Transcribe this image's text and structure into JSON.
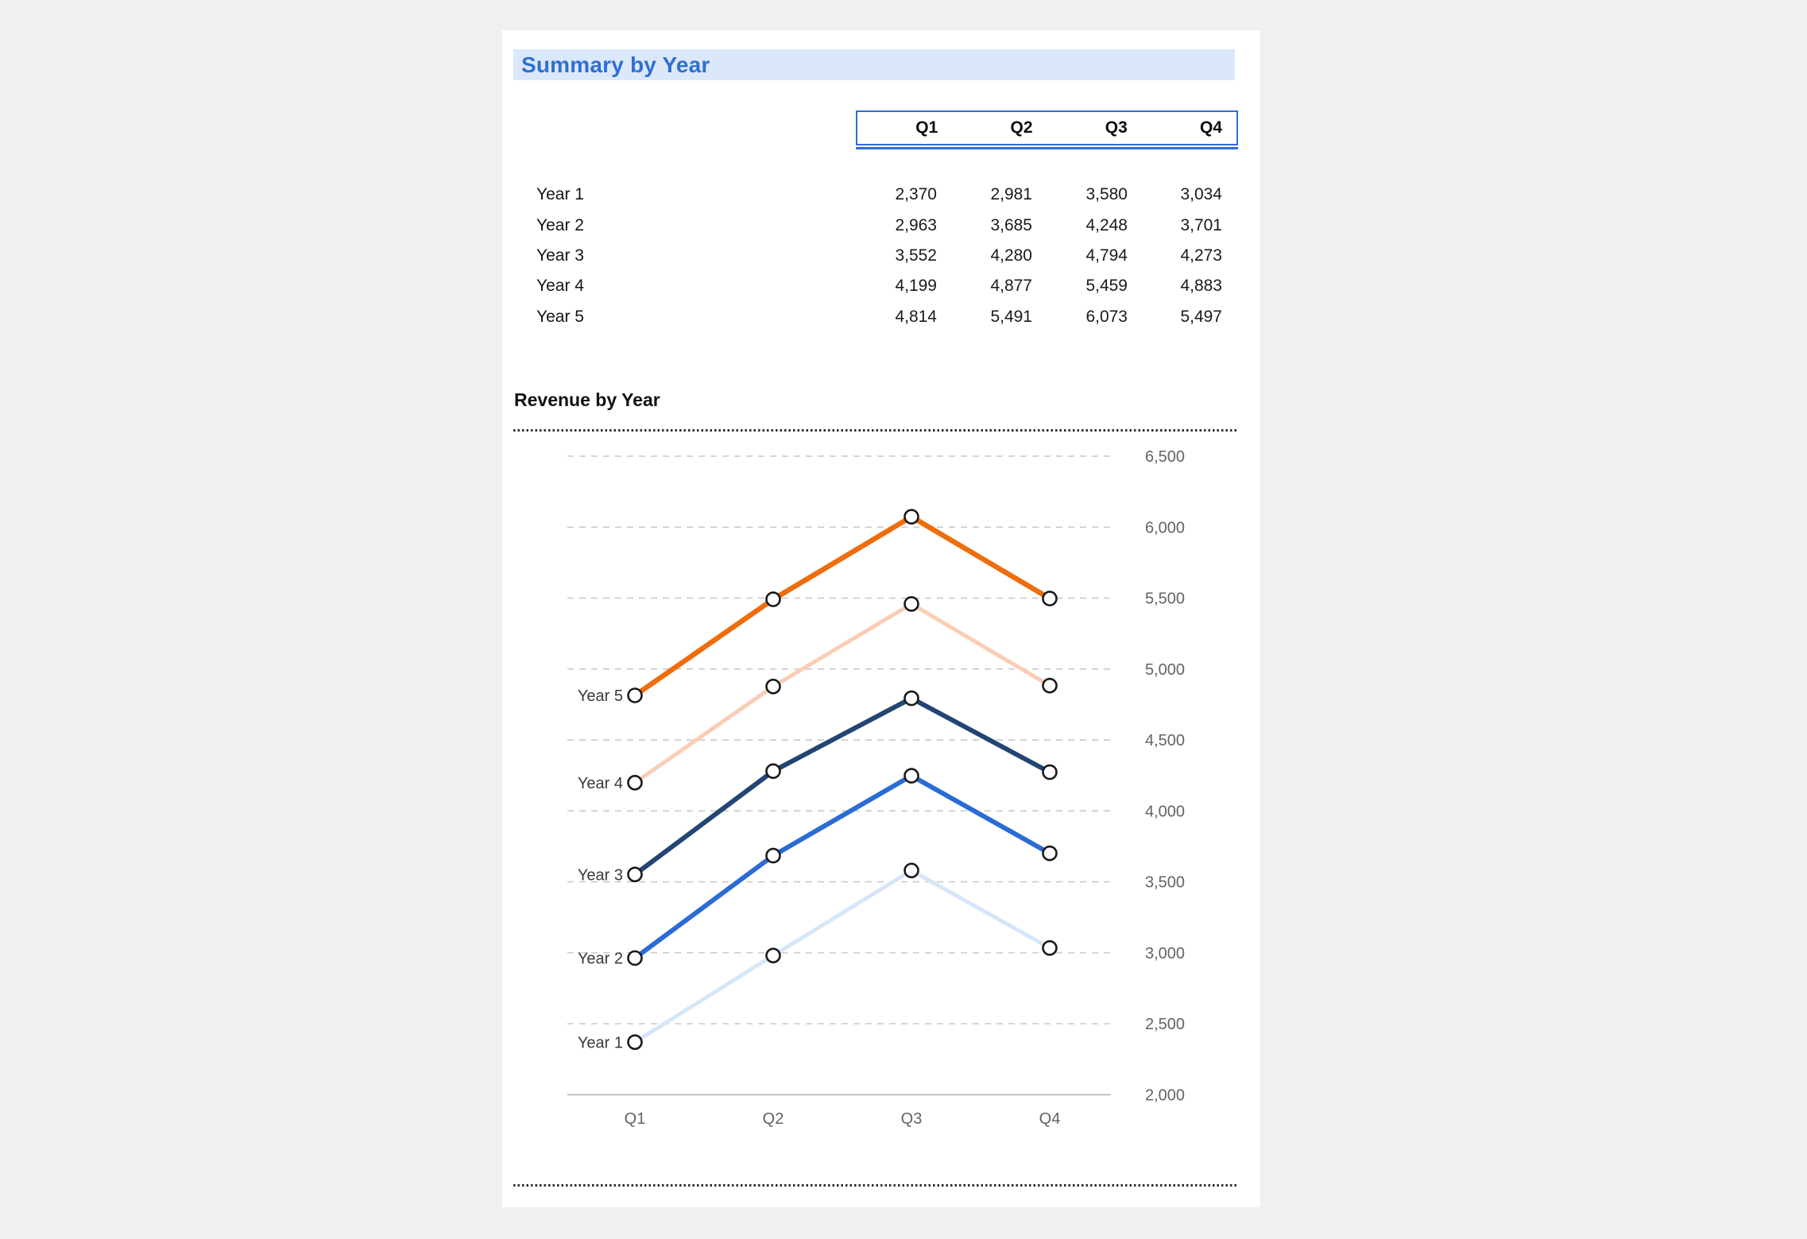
{
  "colors": {
    "page_bg": "#f0f0f0",
    "accent": "#2E6FD3",
    "title_bg": "#DBE8FA",
    "grid": "#c9c9c9",
    "baseline": "#b3b3b3",
    "axis_label": "#636363",
    "separator": "#2e2e2e"
  },
  "summary": {
    "title": "Summary by Year",
    "columns": [
      "Q1",
      "Q2",
      "Q3",
      "Q4"
    ],
    "rows": [
      {
        "label": "Year 1",
        "values": [
          "2,370",
          "2,981",
          "3,580",
          "3,034"
        ]
      },
      {
        "label": "Year 2",
        "values": [
          "2,963",
          "3,685",
          "4,248",
          "3,701"
        ]
      },
      {
        "label": "Year 3",
        "values": [
          "3,552",
          "4,280",
          "4,794",
          "4,273"
        ]
      },
      {
        "label": "Year 4",
        "values": [
          "4,199",
          "4,877",
          "5,459",
          "4,883"
        ]
      },
      {
        "label": "Year 5",
        "values": [
          "4,814",
          "5,491",
          "6,073",
          "5,497"
        ]
      }
    ]
  },
  "chart": {
    "title": "Revenue by Year"
  },
  "chart_data": {
    "type": "line",
    "title": "Revenue by Year",
    "categories": [
      "Q1",
      "Q2",
      "Q3",
      "Q4"
    ],
    "series": [
      {
        "name": "Year 1",
        "values": [
          2370,
          2981,
          3580,
          3034
        ],
        "color": "#D7E5F9",
        "width": 5
      },
      {
        "name": "Year 2",
        "values": [
          2963,
          3685,
          4248,
          3701
        ],
        "color": "#2B6BD5",
        "width": 6
      },
      {
        "name": "Year 3",
        "values": [
          3552,
          4280,
          4794,
          4273
        ],
        "color": "#234573",
        "width": 6
      },
      {
        "name": "Year 4",
        "values": [
          4199,
          4877,
          5459,
          4883
        ],
        "color": "#FACDB4",
        "width": 5
      },
      {
        "name": "Year 5",
        "values": [
          4814,
          5491,
          6073,
          5497
        ],
        "color": "#EE6D0D",
        "width": 6.5
      }
    ],
    "ylim": [
      2000,
      6500
    ],
    "ytick_step": 500,
    "yticks": [
      {
        "value": 6500,
        "label": "6,500"
      },
      {
        "value": 6000,
        "label": "6,000"
      },
      {
        "value": 5500,
        "label": "5,500"
      },
      {
        "value": 5000,
        "label": "5,000"
      },
      {
        "value": 4500,
        "label": "4,500"
      },
      {
        "value": 4000,
        "label": "4,000"
      },
      {
        "value": 3500,
        "label": "3,500"
      },
      {
        "value": 3000,
        "label": "3,000"
      },
      {
        "value": 2500,
        "label": "2,500"
      },
      {
        "value": 2000,
        "label": "2,000"
      }
    ],
    "grid": "horizontal-dashed",
    "value_axis_side": "right",
    "legend": "series labels left of first data point",
    "marker": {
      "shape": "circle",
      "fill": "#ffffff",
      "stroke": "#1a1a1a"
    }
  }
}
